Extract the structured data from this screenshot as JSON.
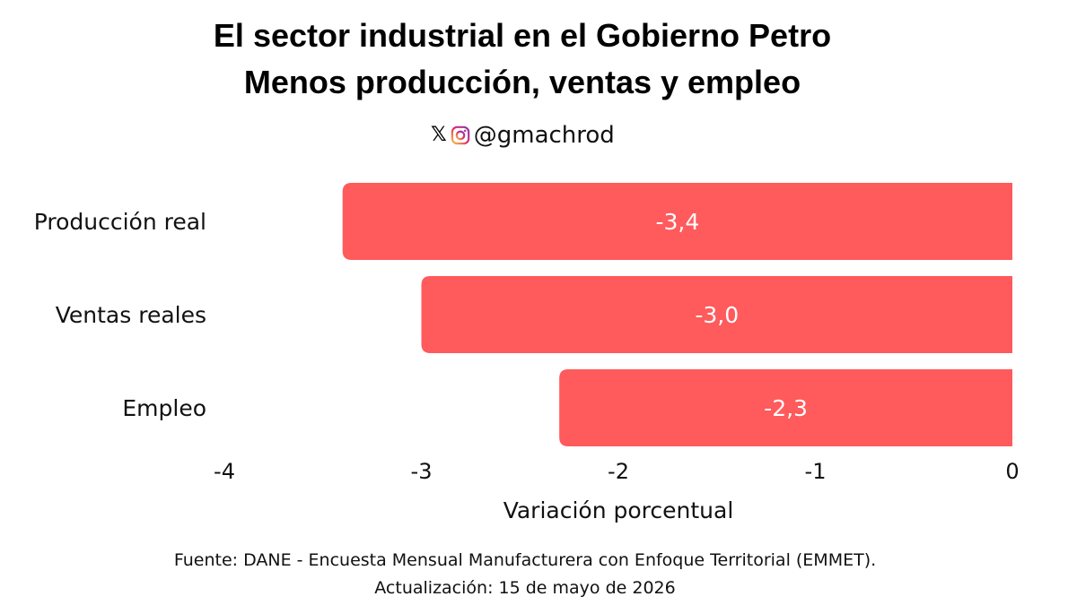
{
  "header": {
    "title_line1": "El sector industrial en el Gobierno Petro",
    "title_line2": "Menos producción, ventas y empleo",
    "handle": "@gmachrod",
    "icons": [
      "x-logo-icon",
      "instagram-icon"
    ]
  },
  "chart_data": {
    "type": "bar",
    "orientation": "horizontal",
    "categories": [
      "Producción real",
      "Ventas reales",
      "Empleo"
    ],
    "values": [
      -3.4,
      -3.0,
      -2.3
    ],
    "data_labels": [
      "-3,4",
      "-3,0",
      "-2,3"
    ],
    "xlabel": "Variación porcentual",
    "xlim": [
      -4,
      0
    ],
    "xticks": [
      -4,
      -3,
      -2,
      -1,
      0
    ],
    "xtick_labels": [
      "-4",
      "-3",
      "-2",
      "-1",
      "0"
    ],
    "grid": false,
    "bar_color": "#ff5a5c",
    "label_color": "#ffffff"
  },
  "footer": {
    "source": "Fuente: DANE - Encuesta Mensual Manufacturera con Enfoque Territorial (EMMET).",
    "updated": "Actualización: 15 de mayo de 2026"
  }
}
